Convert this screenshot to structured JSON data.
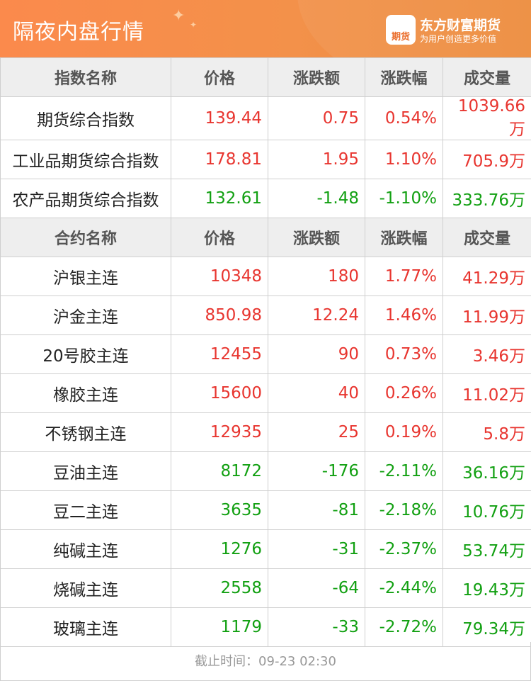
{
  "header": {
    "title": "隔夜内盘行情",
    "brand": "东方财富期货",
    "slogan": "为用户创造更多价值",
    "logo_text": "期货"
  },
  "colors": {
    "up": "#e8352f",
    "down": "#12a012",
    "header": "#f3914a"
  },
  "index_table": {
    "headers": [
      "指数名称",
      "价格",
      "涨跌额",
      "涨跌幅",
      "成交量"
    ],
    "rows": [
      {
        "name": "期货综合指数",
        "price": "139.44",
        "change": "0.75",
        "pct": "0.54%",
        "volume": "1039.66万",
        "dir": "up"
      },
      {
        "name": "工业品期货综合指数",
        "price": "178.81",
        "change": "1.95",
        "pct": "1.10%",
        "volume": "705.9万",
        "dir": "up"
      },
      {
        "name": "农产品期货综合指数",
        "price": "132.61",
        "change": "-1.48",
        "pct": "-1.10%",
        "volume": "333.76万",
        "dir": "down"
      }
    ]
  },
  "contract_table": {
    "headers": [
      "合约名称",
      "价格",
      "涨跌额",
      "涨跌幅",
      "成交量"
    ],
    "rows": [
      {
        "name": "沪银主连",
        "price": "10348",
        "change": "180",
        "pct": "1.77%",
        "volume": "41.29万",
        "dir": "up"
      },
      {
        "name": "沪金主连",
        "price": "850.98",
        "change": "12.24",
        "pct": "1.46%",
        "volume": "11.99万",
        "dir": "up"
      },
      {
        "name": "20号胶主连",
        "price": "12455",
        "change": "90",
        "pct": "0.73%",
        "volume": "3.46万",
        "dir": "up"
      },
      {
        "name": "橡胶主连",
        "price": "15600",
        "change": "40",
        "pct": "0.26%",
        "volume": "11.02万",
        "dir": "up"
      },
      {
        "name": "不锈钢主连",
        "price": "12935",
        "change": "25",
        "pct": "0.19%",
        "volume": "5.8万",
        "dir": "up"
      },
      {
        "name": "豆油主连",
        "price": "8172",
        "change": "-176",
        "pct": "-2.11%",
        "volume": "36.16万",
        "dir": "down"
      },
      {
        "name": "豆二主连",
        "price": "3635",
        "change": "-81",
        "pct": "-2.18%",
        "volume": "10.76万",
        "dir": "down"
      },
      {
        "name": "纯碱主连",
        "price": "1276",
        "change": "-31",
        "pct": "-2.37%",
        "volume": "53.74万",
        "dir": "down"
      },
      {
        "name": "烧碱主连",
        "price": "2558",
        "change": "-64",
        "pct": "-2.44%",
        "volume": "19.43万",
        "dir": "down"
      },
      {
        "name": "玻璃主连",
        "price": "1179",
        "change": "-33",
        "pct": "-2.72%",
        "volume": "79.34万",
        "dir": "down"
      }
    ]
  },
  "footer": {
    "label": "截止时间：",
    "time": "09-23 02:30"
  }
}
